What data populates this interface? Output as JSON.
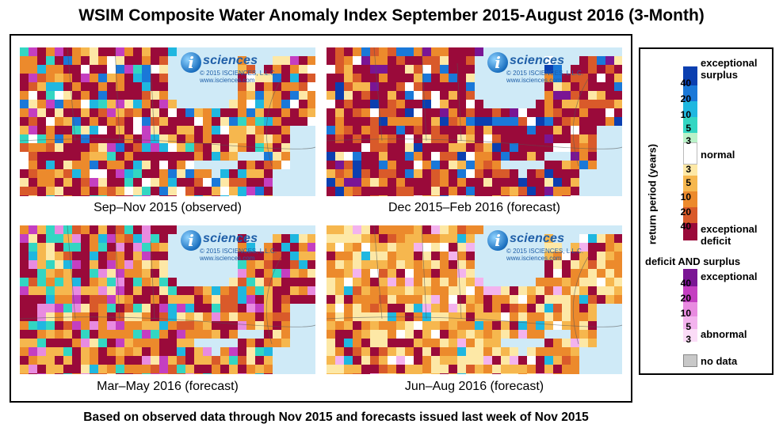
{
  "title": "WSIM Composite Water Anomaly Index September 2015-August 2016 (3-Month)",
  "footer": "Based on observed data through Nov 2015 and forecasts issued last week of Nov 2015",
  "logo": {
    "letter": "i",
    "brand": "sciences",
    "copyright": "© 2015 ISCIENCES, L.L.C.",
    "url": "www.isciences.com"
  },
  "panels": [
    {
      "caption": "Sep–Nov 2015 (observed)",
      "scheme": "mixed"
    },
    {
      "caption": "Dec 2015–Feb 2016 (forecast)",
      "scheme": "deficit"
    },
    {
      "caption": "Mar–May 2016 (forecast)",
      "scheme": "mixed2"
    },
    {
      "caption": "Jun–Aug 2016 (forecast)",
      "scheme": "dry"
    }
  ],
  "legend": {
    "axis_label": "return period (years)",
    "surplus_label": "exceptional surplus",
    "normal_label": "normal",
    "deficit_label": "exceptional deficit",
    "both_title": "deficit AND surplus",
    "both_top_label": "exceptional",
    "both_bottom_label": "abnormal",
    "nodata_label": "no data",
    "surplus_ticks": [
      "40",
      "20",
      "10",
      "5",
      "3"
    ],
    "deficit_ticks": [
      "3",
      "5",
      "10",
      "20",
      "40"
    ],
    "both_ticks": [
      "40",
      "20",
      "10",
      "5",
      "3"
    ],
    "colors": {
      "surplus": [
        "#0b3fb0",
        "#1a78d8",
        "#1fb7e0",
        "#33d6c2",
        "#b9f2c8"
      ],
      "normal": "#ffffff",
      "deficit": [
        "#fde8a6",
        "#f6b74e",
        "#ec8a2c",
        "#d95a2a",
        "#9a0a3a"
      ],
      "both": [
        "#7a1594",
        "#c43fc1",
        "#e88be0",
        "#f3b3ee",
        "#fbdcf7"
      ],
      "nodata": "#c8c8c8",
      "water": "#cfeaf7"
    }
  }
}
